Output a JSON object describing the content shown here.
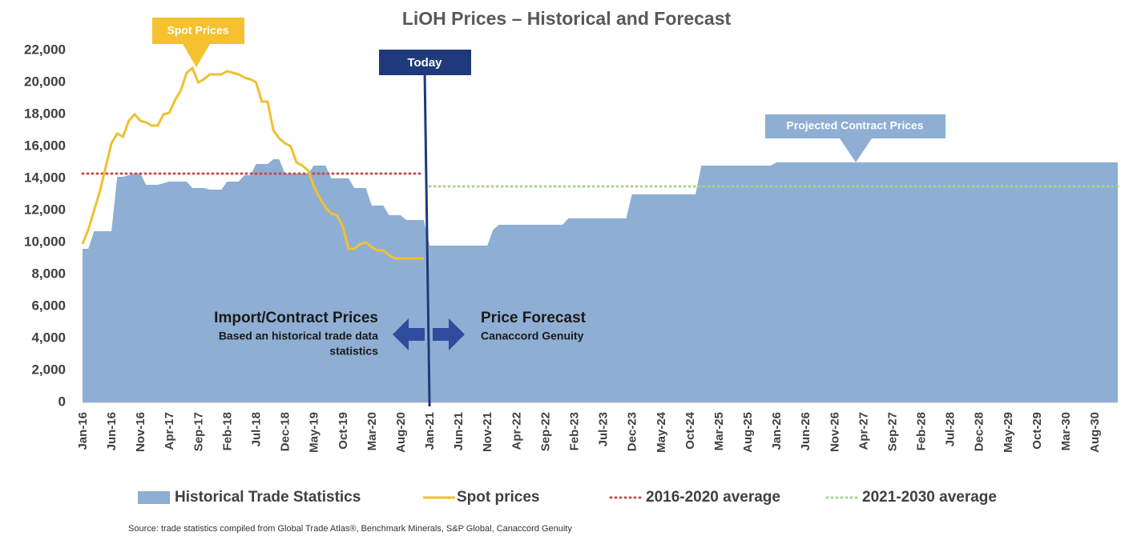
{
  "chart_data": {
    "type": "area_line",
    "title": "LiOH Prices – Historical and Forecast",
    "categories": [
      "Jan-16",
      null,
      null,
      null,
      null,
      "Jun-16",
      null,
      null,
      null,
      null,
      "Nov-16",
      null,
      null,
      null,
      null,
      "Apr-17",
      null,
      null,
      null,
      null,
      "Sep-17",
      null,
      null,
      null,
      null,
      "Feb-18",
      null,
      null,
      null,
      null,
      "Jul-18",
      null,
      null,
      null,
      null,
      "Dec-18",
      null,
      null,
      null,
      null,
      "May-19",
      null,
      null,
      null,
      null,
      "Oct-19",
      null,
      null,
      null,
      null,
      "Mar-20",
      null,
      null,
      null,
      null,
      "Aug-20",
      null,
      null,
      null,
      null,
      "Jan-21",
      null,
      null,
      null,
      null,
      "Jun-21",
      null,
      null,
      null,
      null,
      "Nov-21",
      null,
      null,
      null,
      null,
      "Apr-22",
      null,
      null,
      null,
      null,
      "Sep-22",
      null,
      null,
      null,
      null,
      "Feb-23",
      null,
      null,
      null,
      null,
      "Jul-23",
      null,
      null,
      null,
      null,
      "Dec-23",
      null,
      null,
      null,
      null,
      "May-24",
      null,
      null,
      null,
      null,
      "Oct-24",
      null,
      null,
      null,
      null,
      "Mar-25",
      null,
      null,
      null,
      null,
      "Aug-25",
      null,
      null,
      null,
      null,
      "Jan-26",
      null,
      null,
      null,
      null,
      "Jun-26",
      null,
      null,
      null,
      null,
      "Nov-26",
      null,
      null,
      null,
      null,
      "Apr-27",
      null,
      null,
      null,
      null,
      "Sep-27",
      null,
      null,
      null,
      null,
      "Feb-28",
      null,
      null,
      null,
      null,
      "Jul-28",
      null,
      null,
      null,
      null,
      "Dec-28",
      null,
      null,
      null,
      null,
      "May-29",
      null,
      null,
      null,
      null,
      "Oct-29",
      null,
      null,
      null,
      null,
      "Mar-30",
      null,
      null,
      null,
      null,
      "Aug-30",
      null,
      null,
      null,
      null
    ],
    "series": [
      {
        "name": "Historical Trade Statistics",
        "kind": "area",
        "color": "#8eaed3",
        "values": [
          9600,
          9600,
          10700,
          10700,
          10700,
          10700,
          14100,
          14100,
          14200,
          14300,
          14300,
          13600,
          13600,
          13600,
          13700,
          13800,
          13800,
          13800,
          13800,
          13400,
          13400,
          13400,
          13300,
          13300,
          13300,
          13800,
          13800,
          13800,
          14200,
          14200,
          14900,
          14900,
          14900,
          15200,
          15200,
          14300,
          14300,
          14300,
          14300,
          14300,
          14800,
          14800,
          14800,
          14000,
          14000,
          14000,
          14000,
          13400,
          13400,
          13400,
          12300,
          12300,
          12300,
          11700,
          11700,
          11700,
          11400,
          11400,
          11400,
          11400,
          9800,
          9800,
          9800,
          9800,
          9800,
          9800,
          9800,
          9800,
          9800,
          9800,
          9800,
          10800,
          11100,
          11100,
          11100,
          11100,
          11100,
          11100,
          11100,
          11100,
          11100,
          11100,
          11100,
          11100,
          11500,
          11500,
          11500,
          11500,
          11500,
          11500,
          11500,
          11500,
          11500,
          11500,
          11500,
          13000,
          13000,
          13000,
          13000,
          13000,
          13000,
          13000,
          13000,
          13000,
          13000,
          13000,
          13000,
          14800,
          14800,
          14800,
          14800,
          14800,
          14800,
          14800,
          14800,
          14800,
          14800,
          14800,
          14800,
          14800,
          15000,
          15000,
          15000,
          15000,
          15000,
          15000,
          15000,
          15000,
          15000,
          15000,
          15000,
          15000,
          15000,
          15000,
          15000,
          15000,
          15000,
          15000,
          15000,
          15000,
          15000,
          15000,
          15000,
          15000,
          15000,
          15000,
          15000,
          15000,
          15000,
          15000,
          15000,
          15000,
          15000,
          15000,
          15000,
          15000,
          15000,
          15000,
          15000,
          15000,
          15000,
          15000,
          15000,
          15000,
          15000,
          15000,
          15000,
          15000,
          15000,
          15000,
          15000,
          15000,
          15000,
          15000,
          15000,
          15000,
          15000,
          15000,
          15000,
          15000
        ]
      },
      {
        "name": "Spot prices",
        "kind": "line",
        "color": "#f0c030",
        "values": [
          9900,
          10800,
          12000,
          13200,
          14700,
          16200,
          16800,
          16600,
          17600,
          18000,
          17600,
          17500,
          17300,
          17300,
          18000,
          18100,
          18900,
          19500,
          20600,
          20900,
          20000,
          20200,
          20500,
          20500,
          20500,
          20700,
          20600,
          20500,
          20300,
          20200,
          20000,
          18800,
          18800,
          17000,
          16500,
          16200,
          16000,
          15000,
          14800,
          14500,
          13500,
          12800,
          12200,
          11800,
          11700,
          11000,
          9600,
          9600,
          9900,
          10000,
          9700,
          9500,
          9500,
          9200,
          9000,
          9000,
          9000,
          9000,
          9000,
          9000,
          null,
          null,
          null,
          null,
          null,
          null,
          null,
          null,
          null,
          null,
          null,
          null,
          null,
          null,
          null,
          null,
          null,
          null,
          null,
          null,
          null,
          null,
          null,
          null,
          null,
          null,
          null,
          null,
          null,
          null,
          null,
          null,
          null,
          null,
          null,
          null,
          null,
          null,
          null,
          null,
          null,
          null,
          null,
          null,
          null,
          null,
          null,
          null,
          null,
          null,
          null,
          null,
          null,
          null,
          null,
          null,
          null,
          null,
          null,
          null,
          null,
          null,
          null,
          null,
          null,
          null,
          null,
          null,
          null,
          null,
          null,
          null,
          null,
          null,
          null,
          null,
          null,
          null,
          null,
          null,
          null,
          null,
          null,
          null,
          null,
          null,
          null,
          null,
          null,
          null,
          null,
          null,
          null,
          null,
          null,
          null,
          null,
          null,
          null,
          null,
          null,
          null,
          null,
          null,
          null,
          null,
          null,
          null,
          null,
          null,
          null,
          null,
          null,
          null,
          null,
          null,
          null,
          null,
          null,
          null
        ]
      },
      {
        "name": "2016-2020 average",
        "kind": "dotted",
        "color": "#c0504d",
        "values": [
          14300,
          14300,
          14300,
          14300,
          14300,
          14300,
          14300,
          14300,
          14300,
          14300,
          14300,
          14300,
          14300,
          14300,
          14300,
          14300,
          14300,
          14300,
          14300,
          14300,
          14300,
          14300,
          14300,
          14300,
          14300,
          14300,
          14300,
          14300,
          14300,
          14300,
          14300,
          14300,
          14300,
          14300,
          14300,
          14300,
          14300,
          14300,
          14300,
          14300,
          14300,
          14300,
          14300,
          14300,
          14300,
          14300,
          14300,
          14300,
          14300,
          14300,
          14300,
          14300,
          14300,
          14300,
          14300,
          14300,
          14300,
          14300,
          14300,
          14300,
          null,
          null,
          null,
          null,
          null,
          null,
          null,
          null,
          null,
          null,
          null,
          null,
          null,
          null,
          null,
          null,
          null,
          null,
          null,
          null,
          null,
          null,
          null,
          null,
          null,
          null,
          null,
          null,
          null,
          null,
          null,
          null,
          null,
          null,
          null,
          null,
          null,
          null,
          null,
          null,
          null,
          null,
          null,
          null,
          null,
          null,
          null,
          null,
          null,
          null,
          null,
          null,
          null,
          null,
          null,
          null,
          null,
          null,
          null,
          null,
          null,
          null,
          null,
          null,
          null,
          null,
          null,
          null,
          null,
          null,
          null,
          null,
          null,
          null,
          null,
          null,
          null,
          null,
          null,
          null,
          null,
          null,
          null,
          null,
          null,
          null,
          null,
          null,
          null,
          null,
          null,
          null,
          null,
          null,
          null,
          null,
          null,
          null,
          null,
          null,
          null,
          null,
          null,
          null,
          null,
          null,
          null,
          null,
          null,
          null,
          null,
          null,
          null,
          null,
          null,
          null,
          null,
          null,
          null,
          null
        ]
      },
      {
        "name": "2021-2030 average",
        "kind": "dotted",
        "color": "#a9d18e",
        "values": [
          null,
          null,
          null,
          null,
          null,
          null,
          null,
          null,
          null,
          null,
          null,
          null,
          null,
          null,
          null,
          null,
          null,
          null,
          null,
          null,
          null,
          null,
          null,
          null,
          null,
          null,
          null,
          null,
          null,
          null,
          null,
          null,
          null,
          null,
          null,
          null,
          null,
          null,
          null,
          null,
          null,
          null,
          null,
          null,
          null,
          null,
          null,
          null,
          null,
          null,
          null,
          null,
          null,
          null,
          null,
          null,
          null,
          null,
          null,
          null,
          13500,
          13500,
          13500,
          13500,
          13500,
          13500,
          13500,
          13500,
          13500,
          13500,
          13500,
          13500,
          13500,
          13500,
          13500,
          13500,
          13500,
          13500,
          13500,
          13500,
          13500,
          13500,
          13500,
          13500,
          13500,
          13500,
          13500,
          13500,
          13500,
          13500,
          13500,
          13500,
          13500,
          13500,
          13500,
          13500,
          13500,
          13500,
          13500,
          13500,
          13500,
          13500,
          13500,
          13500,
          13500,
          13500,
          13500,
          13500,
          13500,
          13500,
          13500,
          13500,
          13500,
          13500,
          13500,
          13500,
          13500,
          13500,
          13500,
          13500,
          13500,
          13500,
          13500,
          13500,
          13500,
          13500,
          13500,
          13500,
          13500,
          13500,
          13500,
          13500,
          13500,
          13500,
          13500,
          13500,
          13500,
          13500,
          13500,
          13500,
          13500,
          13500,
          13500,
          13500,
          13500,
          13500,
          13500,
          13500,
          13500,
          13500,
          13500,
          13500,
          13500,
          13500,
          13500,
          13500,
          13500,
          13500,
          13500,
          13500,
          13500,
          13500,
          13500,
          13500,
          13500,
          13500,
          13500,
          13500,
          13500,
          13500,
          13500,
          13500,
          13500,
          13500,
          13500,
          13500,
          13500,
          13500,
          13500,
          13500
        ]
      }
    ],
    "ylim": [
      0,
      22000
    ],
    "yticks": [
      0,
      {
        "value": 2000,
        "label": "2,000"
      },
      {
        "value": 4000,
        "label": "4,000"
      },
      {
        "value": 6000,
        "label": "6,000"
      },
      {
        "value": 8000,
        "label": "8,000"
      },
      {
        "value": 10000,
        "label": "10,000"
      },
      {
        "value": 12000,
        "label": "12,000"
      },
      {
        "value": 14000,
        "label": "14,000"
      },
      {
        "value": 16000,
        "label": "16,000"
      },
      {
        "value": 18000,
        "label": "18,000"
      },
      {
        "value": 20000,
        "label": "20,000"
      },
      {
        "value": 22000,
        "label": "22,000"
      }
    ],
    "grid": false,
    "legend": "bottom",
    "today": "Jan-21",
    "today_label": "Today",
    "annotations": {
      "spot": "Spot Prices",
      "projected": "Projected Contract Prices",
      "import_title": "Import/Contract Prices",
      "import_sub1": "Based an historical trade data",
      "import_sub2": "statistics",
      "forecast_title": "Price Forecast",
      "forecast_sub": "Canaccord Genuity"
    },
    "source": "Source: trade statistics compiled from Global Trade Atlas®, Benchmark Minerals, S&P Global, Canaccord Genuity"
  }
}
